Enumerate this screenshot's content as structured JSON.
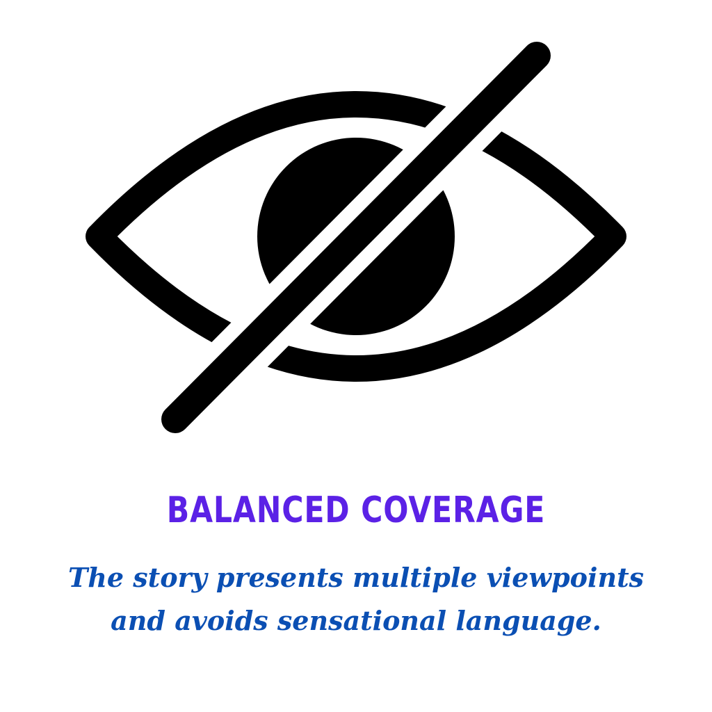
{
  "card": {
    "icon": "eye-slash-icon",
    "title": "BALANCED COVERAGE",
    "description": "The story presents multiple viewpoints and avoids sensational language."
  },
  "colors": {
    "background": "#ffffff",
    "icon": "#000000",
    "title": "#5b21e6",
    "description": "#0b4fb3"
  }
}
